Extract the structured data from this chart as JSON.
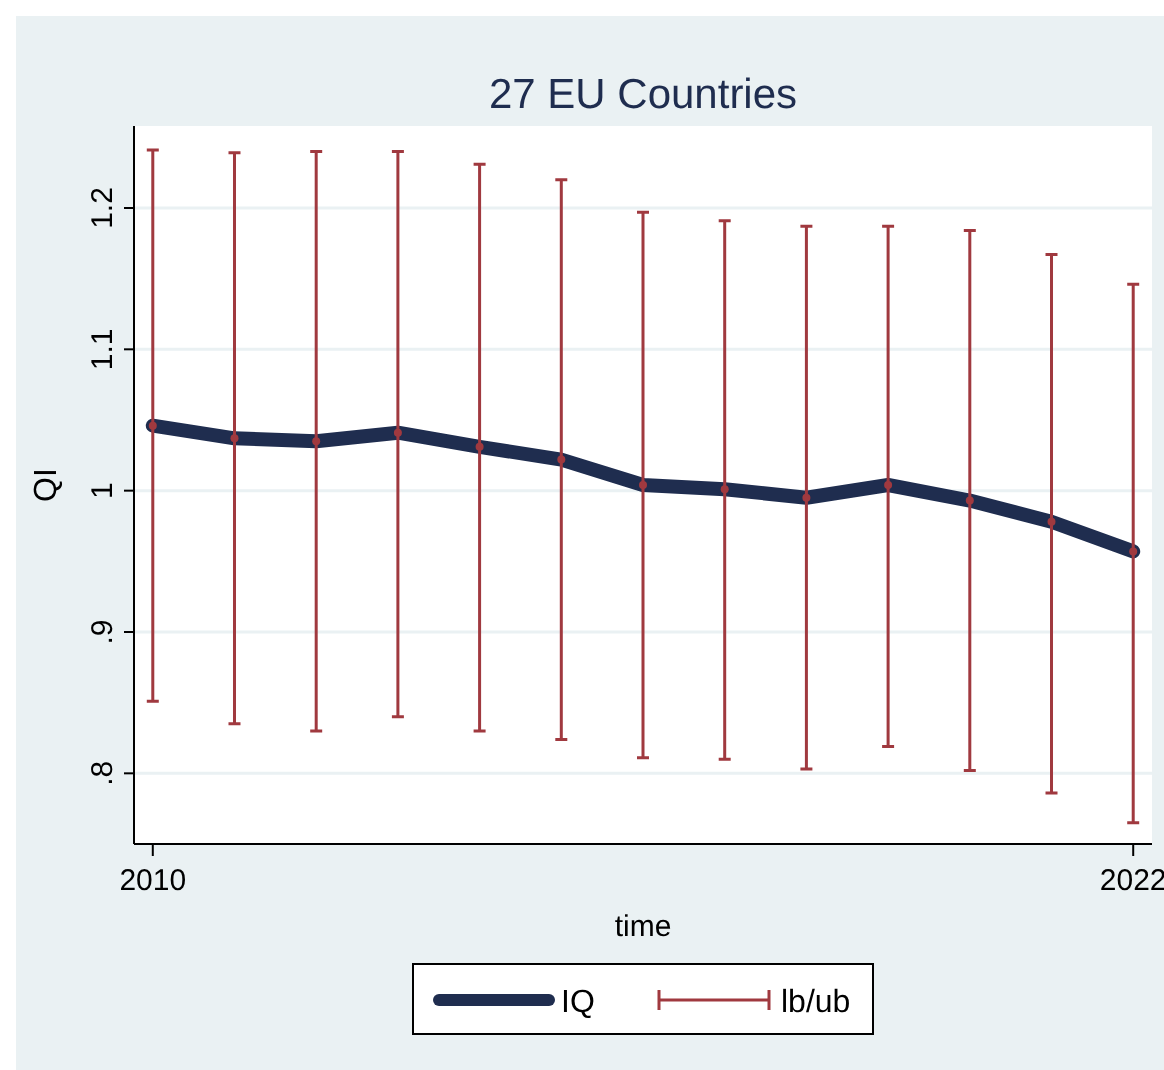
{
  "chart_data": {
    "type": "line",
    "title": "27 EU Countries",
    "xlabel": "time",
    "ylabel": "QI",
    "x": [
      2010,
      2011,
      2012,
      2013,
      2014,
      2015,
      2016,
      2017,
      2018,
      2019,
      2020,
      2021,
      2022
    ],
    "series": [
      {
        "name": "IQ",
        "color": "#1f2d4f",
        "values": [
          1.046,
          1.037,
          1.035,
          1.041,
          1.031,
          1.022,
          1.004,
          1.001,
          0.995,
          1.004,
          0.993,
          0.978,
          0.957
        ]
      },
      {
        "name": "lb/ub",
        "type": "scatter",
        "color": "#a0393f",
        "values": [
          1.046,
          1.037,
          1.035,
          1.041,
          1.031,
          1.022,
          1.004,
          1.001,
          0.995,
          1.004,
          0.993,
          0.978,
          0.957
        ],
        "errors": [
          [
            0.851,
            1.241
          ],
          [
            0.835,
            1.239
          ],
          [
            0.83,
            1.24
          ],
          [
            0.84,
            1.24
          ],
          [
            0.83,
            1.231
          ],
          [
            0.824,
            1.22
          ],
          [
            0.811,
            1.197
          ],
          [
            0.81,
            1.191
          ],
          [
            0.803,
            1.187
          ],
          [
            0.819,
            1.187
          ],
          [
            0.802,
            1.184
          ],
          [
            0.786,
            1.167
          ],
          [
            0.765,
            1.146
          ]
        ]
      }
    ],
    "xlim": [
      2009.77,
      2022.23
    ],
    "xticks": [
      2010,
      2022
    ],
    "ylim": [
      0.75,
      1.258
    ],
    "yticks": [
      {
        "value": 0.8,
        "label": ".8"
      },
      {
        "value": 0.9,
        "label": ".9"
      },
      1,
      1.1,
      1.2
    ],
    "grid": "y",
    "legend": "bottom"
  }
}
